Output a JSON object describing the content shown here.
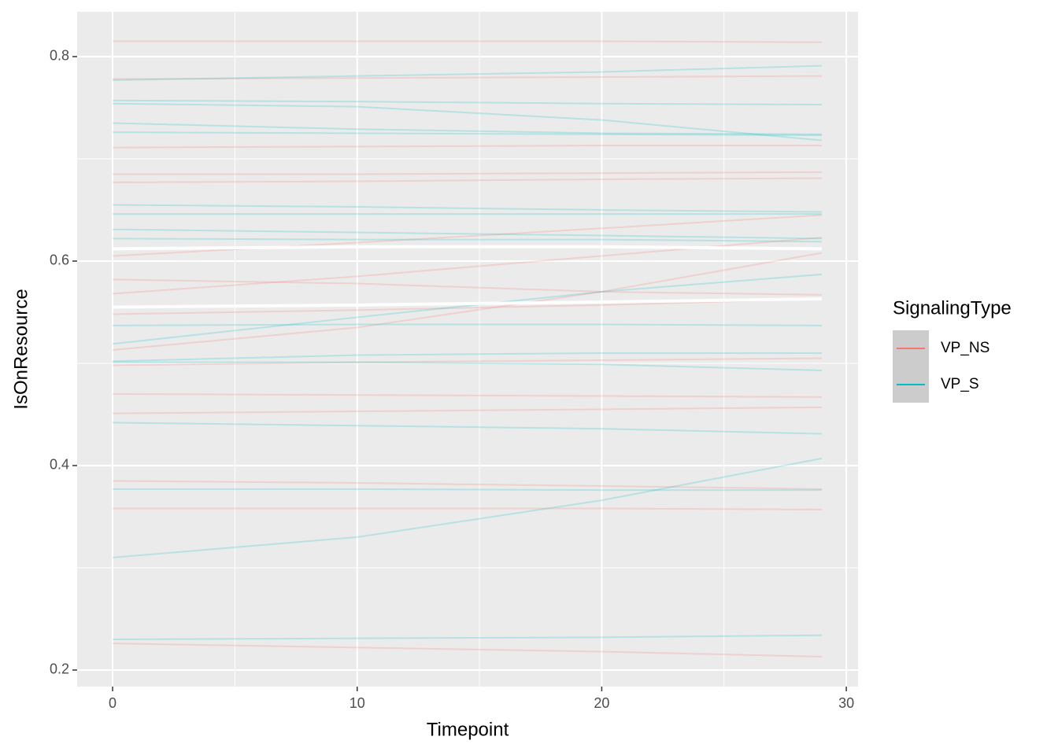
{
  "chart_data": {
    "type": "line",
    "x_label": "Timepoint",
    "y_label": "IsOnResource",
    "legend_title": "SignalingType",
    "x": [
      0,
      10,
      20,
      29
    ],
    "xlim": [
      -1.45,
      30.48
    ],
    "xticks": [
      0,
      10,
      20,
      30
    ],
    "xminor": [
      5,
      15,
      25
    ],
    "ylim": [
      0.1838,
      0.8438
    ],
    "yticks": [
      0.2,
      0.4,
      0.6,
      0.8
    ],
    "yminor": [
      0.3,
      0.5,
      0.7
    ],
    "grid": true,
    "series": [
      {
        "name": "VP_NS",
        "color": "#F8766D",
        "lines": [
          [
            0.815,
            0.815,
            0.815,
            0.814
          ],
          [
            0.778,
            0.779,
            0.78,
            0.781
          ],
          [
            0.711,
            0.712,
            0.713,
            0.713
          ],
          [
            0.685,
            0.685,
            0.686,
            0.687
          ],
          [
            0.677,
            0.678,
            0.68,
            0.681
          ],
          [
            0.605,
            0.618,
            0.632,
            0.645
          ],
          [
            0.568,
            0.585,
            0.605,
            0.623
          ],
          [
            0.582,
            0.578,
            0.57,
            0.567
          ],
          [
            0.513,
            0.535,
            0.57,
            0.608
          ],
          [
            0.548,
            0.552,
            0.557,
            0.563
          ],
          [
            0.498,
            0.501,
            0.503,
            0.505
          ],
          [
            0.47,
            0.469,
            0.468,
            0.467
          ],
          [
            0.451,
            0.453,
            0.455,
            0.457
          ],
          [
            0.385,
            0.383,
            0.38,
            0.377
          ],
          [
            0.358,
            0.358,
            0.358,
            0.357
          ],
          [
            0.226,
            0.222,
            0.218,
            0.213
          ]
        ]
      },
      {
        "name": "VP_S",
        "color": "#00BFC4",
        "lines": [
          [
            0.777,
            0.781,
            0.785,
            0.791
          ],
          [
            0.757,
            0.756,
            0.754,
            0.753
          ],
          [
            0.754,
            0.751,
            0.738,
            0.718
          ],
          [
            0.735,
            0.729,
            0.725,
            0.724
          ],
          [
            0.726,
            0.725,
            0.724,
            0.723
          ],
          [
            0.655,
            0.653,
            0.65,
            0.648
          ],
          [
            0.646,
            0.646,
            0.646,
            0.646
          ],
          [
            0.631,
            0.628,
            0.625,
            0.622
          ],
          [
            0.622,
            0.621,
            0.621,
            0.619
          ],
          [
            0.519,
            0.545,
            0.57,
            0.587
          ],
          [
            0.537,
            0.538,
            0.538,
            0.537
          ],
          [
            0.502,
            0.508,
            0.51,
            0.51
          ],
          [
            0.501,
            0.501,
            0.499,
            0.493
          ],
          [
            0.442,
            0.439,
            0.436,
            0.431
          ],
          [
            0.377,
            0.377,
            0.376,
            0.376
          ],
          [
            0.31,
            0.33,
            0.366,
            0.407
          ],
          [
            0.23,
            0.231,
            0.232,
            0.234
          ]
        ]
      }
    ],
    "summary_lines": {
      "color": "#FFFFFF",
      "lines": [
        [
          0.612,
          0.614,
          0.614,
          0.612
        ],
        [
          0.555,
          0.557,
          0.56,
          0.563
        ]
      ]
    }
  }
}
